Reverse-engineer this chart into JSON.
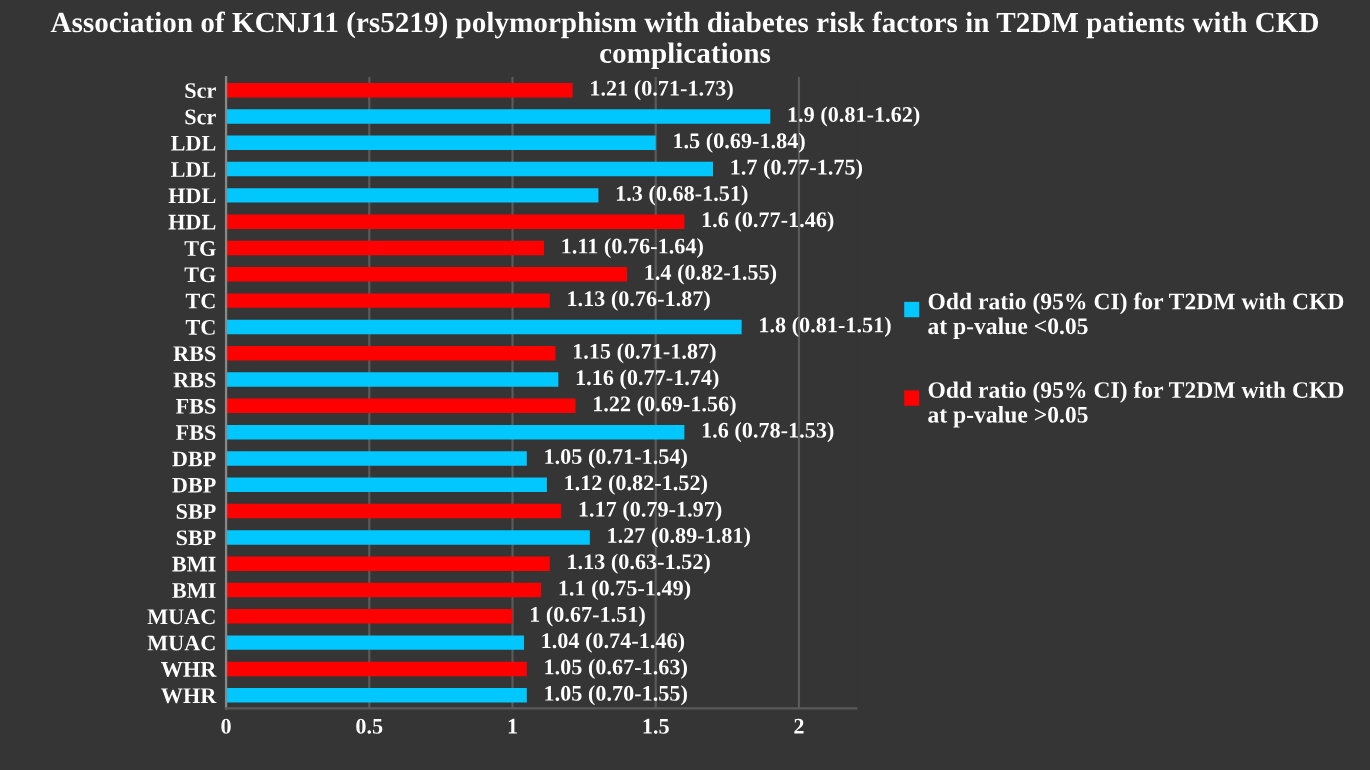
{
  "chart_data": {
    "type": "bar",
    "orientation": "horizontal",
    "title": "Association of KCNJ11 (rs5219) polymorphism with diabetes risk factors in T2DM patients with CKD complications",
    "categories": [
      "Scr",
      "Scr",
      "LDL",
      "LDL",
      "HDL",
      "HDL",
      "TG",
      "TG",
      "TC",
      "TC",
      "RBS",
      "RBS",
      "FBS",
      "FBS",
      "DBP",
      "DBP",
      "SBP",
      "SBP",
      "BMI",
      "BMI",
      "MUAC",
      "MUAC",
      "WHR",
      "WHR"
    ],
    "series": [
      {
        "name": "Odd ratio (95% CI) for T2DM with CKD at p-value <0.05",
        "color": "#00c8ff",
        "values": [
          null,
          1.9,
          1.5,
          1.7,
          1.3,
          null,
          null,
          null,
          null,
          1.8,
          null,
          1.16,
          null,
          1.6,
          1.05,
          1.12,
          null,
          1.27,
          null,
          null,
          null,
          1.04,
          null,
          1.05
        ],
        "value_labels": [
          null,
          "1.9 (0.81-1.62)",
          "1.5 (0.69-1.84)",
          "1.7 (0.77-1.75)",
          "1.3 (0.68-1.51)",
          null,
          null,
          null,
          null,
          "1.8 (0.81-1.51)",
          null,
          "1.16 (0.77-1.74)",
          null,
          "1.6 (0.78-1.53)",
          "1.05 (0.71-1.54)",
          "1.12 (0.82-1.52)",
          null,
          "1.27 (0.89-1.81)",
          null,
          null,
          null,
          "1.04 (0.74-1.46)",
          null,
          "1.05 (0.70-1.55)"
        ]
      },
      {
        "name": "Odd ratio (95% CI) for T2DM with CKD at p-value >0.05",
        "color": "#ff0000",
        "values": [
          1.21,
          null,
          null,
          null,
          null,
          1.6,
          1.11,
          1.4,
          1.13,
          null,
          1.15,
          null,
          1.22,
          null,
          null,
          null,
          1.17,
          null,
          1.13,
          1.1,
          1,
          null,
          1.05,
          null
        ],
        "value_labels": [
          "1.21 (0.71-1.73)",
          null,
          null,
          null,
          null,
          "1.6 (0.77-1.46)",
          "1.11 (0.76-1.64)",
          "1.4 (0.82-1.55)",
          "1.13 (0.76-1.87)",
          null,
          "1.15 (0.71-1.87)",
          null,
          "1.22 (0.69-1.56)",
          null,
          null,
          null,
          "1.17 (0.79-1.97)",
          null,
          "1.13 (0.63-1.52)",
          "1.1 (0.75-1.49)",
          "1 (0.67-1.51)",
          null,
          "1.05 (0.67-1.63)",
          null
        ]
      }
    ],
    "xlim": [
      0,
      2.2
    ],
    "xticks": [
      0,
      0.5,
      1,
      1.5,
      2
    ],
    "grid": "x",
    "legend": "right"
  }
}
